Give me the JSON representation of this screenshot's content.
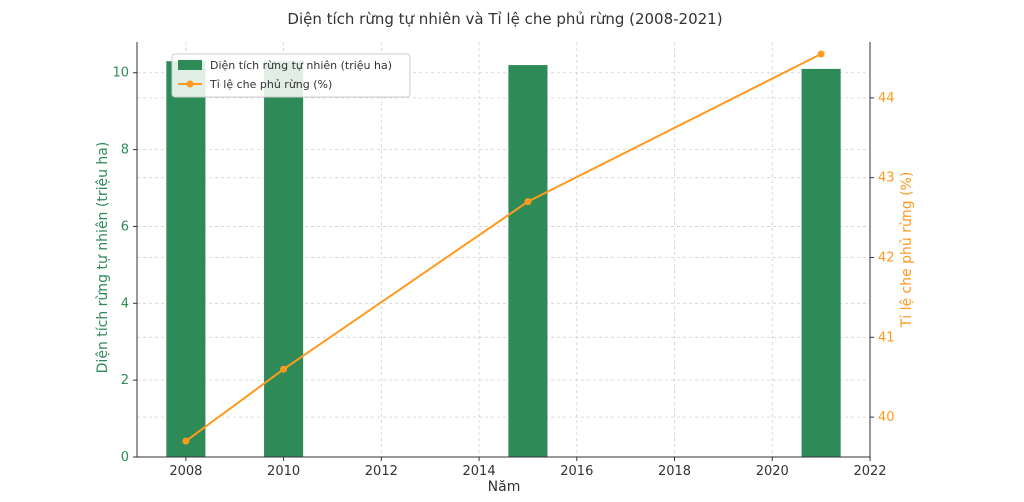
{
  "chart_data": {
    "type": "bar+line",
    "title": "Diện tích rừng tự nhiên và Tỉ lệ che phủ rừng (2008-2021)",
    "xlabel": "Năm",
    "ylabel_left": "Diện tích rừng tự nhiên (triệu ha)",
    "ylabel_right": "Tỉ lệ che phủ rừng (%)",
    "xlim": [
      2007,
      2022
    ],
    "ylim_left": [
      0,
      10.8
    ],
    "ylim_right": [
      39.5,
      44.7
    ],
    "x_ticks": [
      "2008",
      "2010",
      "2012",
      "2014",
      "2016",
      "2018",
      "2020",
      "2022"
    ],
    "y_left_ticks": [
      "0",
      "2",
      "4",
      "6",
      "8",
      "10"
    ],
    "y_right_ticks": [
      "40",
      "41",
      "42",
      "43",
      "44"
    ],
    "grid": true,
    "legend_position": "top-left",
    "bars": {
      "name": "Diện tích rừng tự nhiên (triệu ha)",
      "x": [
        2008,
        2010,
        2015,
        2021
      ],
      "values": [
        10.3,
        10.3,
        10.2,
        10.1
      ],
      "color": "#2e8b57"
    },
    "line": {
      "name": "Tỉ lệ che phủ rừng (%)",
      "x": [
        2008,
        2010,
        2015,
        2021
      ],
      "values": [
        39.7,
        40.6,
        42.7,
        44.55
      ],
      "color": "#ff9a1f"
    },
    "left_axis_color": "#2e8b57",
    "right_axis_color": "#ff9a1f"
  }
}
